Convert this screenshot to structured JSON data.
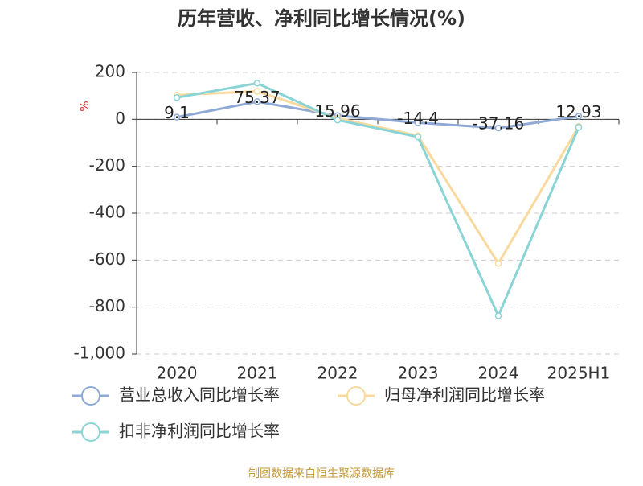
{
  "chart_data": {
    "type": "line",
    "title": "历年营收、净利同比增长情况(%)",
    "y_label": "%",
    "source": "制图数据来自恒生聚源数据库",
    "categories": [
      "2020",
      "2021",
      "2022",
      "2023",
      "2024",
      "2025H1"
    ],
    "series": [
      {
        "name": "营业总收入同比增长率",
        "color": "#8fa9d6",
        "values": [
          9.1,
          75.37,
          15.96,
          -14.4,
          -37.16,
          12.93
        ]
      },
      {
        "name": "归母净利润同比增长率",
        "color": "#f9d99e",
        "values": [
          103,
          120,
          5,
          -70,
          -614,
          -30
        ]
      },
      {
        "name": "扣非净利润同比增长率",
        "color": "#8ad4d6",
        "values": [
          93,
          154,
          -3,
          -75,
          -837,
          -34
        ]
      }
    ],
    "ylim": [
      -1000,
      200
    ],
    "yticks": [
      200,
      0,
      -200,
      -400,
      -600,
      -800,
      {
        "value": -1000,
        "label": "-1,000"
      }
    ],
    "grid": true
  }
}
